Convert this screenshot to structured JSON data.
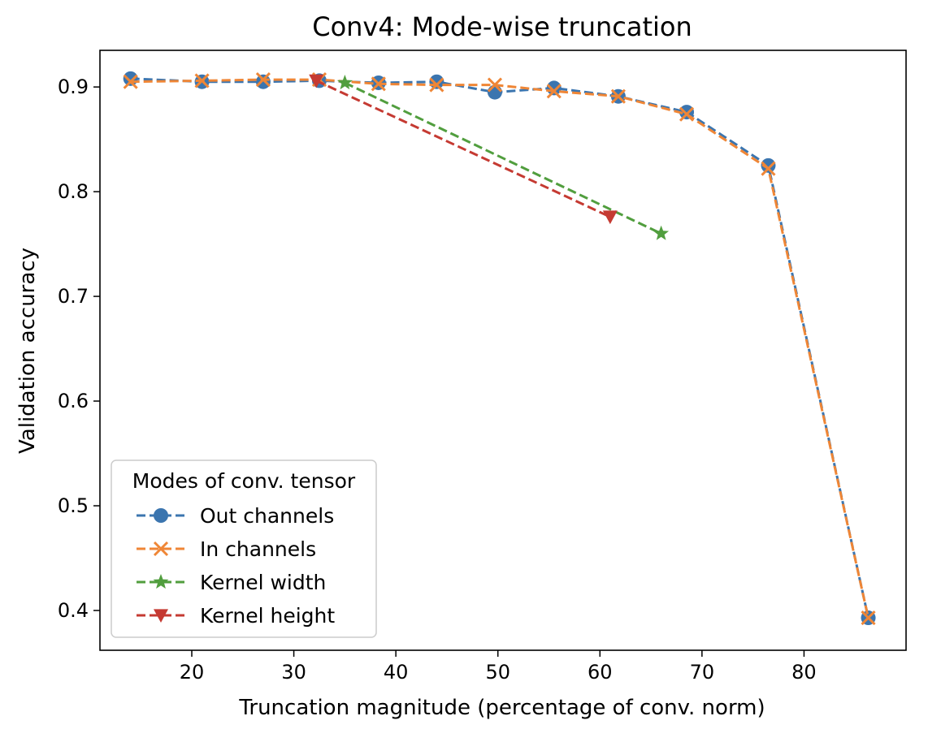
{
  "chart_data": {
    "type": "line",
    "title": "Conv4: Mode-wise truncation",
    "xlabel": "Truncation magnitude (percentage of conv. norm)",
    "ylabel": "Validation accuracy",
    "xlim": [
      11.0,
      90.0
    ],
    "ylim": [
      0.362,
      0.935
    ],
    "xticks": [
      20,
      30,
      40,
      50,
      60,
      70,
      80
    ],
    "yticks": [
      0.4,
      0.5,
      0.6,
      0.7,
      0.8,
      0.9
    ],
    "grid": false,
    "legend": {
      "title": "Modes of conv. tensor",
      "placement": "lower-left"
    },
    "series": [
      {
        "name": "Out channels",
        "color": "#3b75af",
        "marker": "circle",
        "linestyle": "dashed",
        "x": [
          14.0,
          21.0,
          27.0,
          32.5,
          38.3,
          44.0,
          49.7,
          55.5,
          61.8,
          68.5,
          76.5,
          86.3
        ],
        "y": [
          0.908,
          0.905,
          0.905,
          0.906,
          0.904,
          0.905,
          0.895,
          0.899,
          0.891,
          0.876,
          0.825,
          0.393
        ]
      },
      {
        "name": "In channels",
        "color": "#ef8636",
        "marker": "x",
        "linestyle": "dashed",
        "x": [
          14.0,
          21.0,
          27.0,
          32.5,
          38.3,
          44.0,
          49.7,
          55.5,
          61.8,
          68.5,
          76.5,
          86.3
        ],
        "y": [
          0.905,
          0.906,
          0.907,
          0.907,
          0.903,
          0.902,
          0.902,
          0.896,
          0.891,
          0.874,
          0.822,
          0.393
        ]
      },
      {
        "name": "Kernel width",
        "color": "#519e3e",
        "marker": "star",
        "linestyle": "dashed",
        "x": [
          35.0,
          66.0
        ],
        "y": [
          0.904,
          0.76
        ]
      },
      {
        "name": "Kernel height",
        "color": "#c53a32",
        "marker": "triangle-down",
        "linestyle": "dashed",
        "x": [
          32.2,
          61.0
        ],
        "y": [
          0.906,
          0.776
        ]
      }
    ]
  }
}
